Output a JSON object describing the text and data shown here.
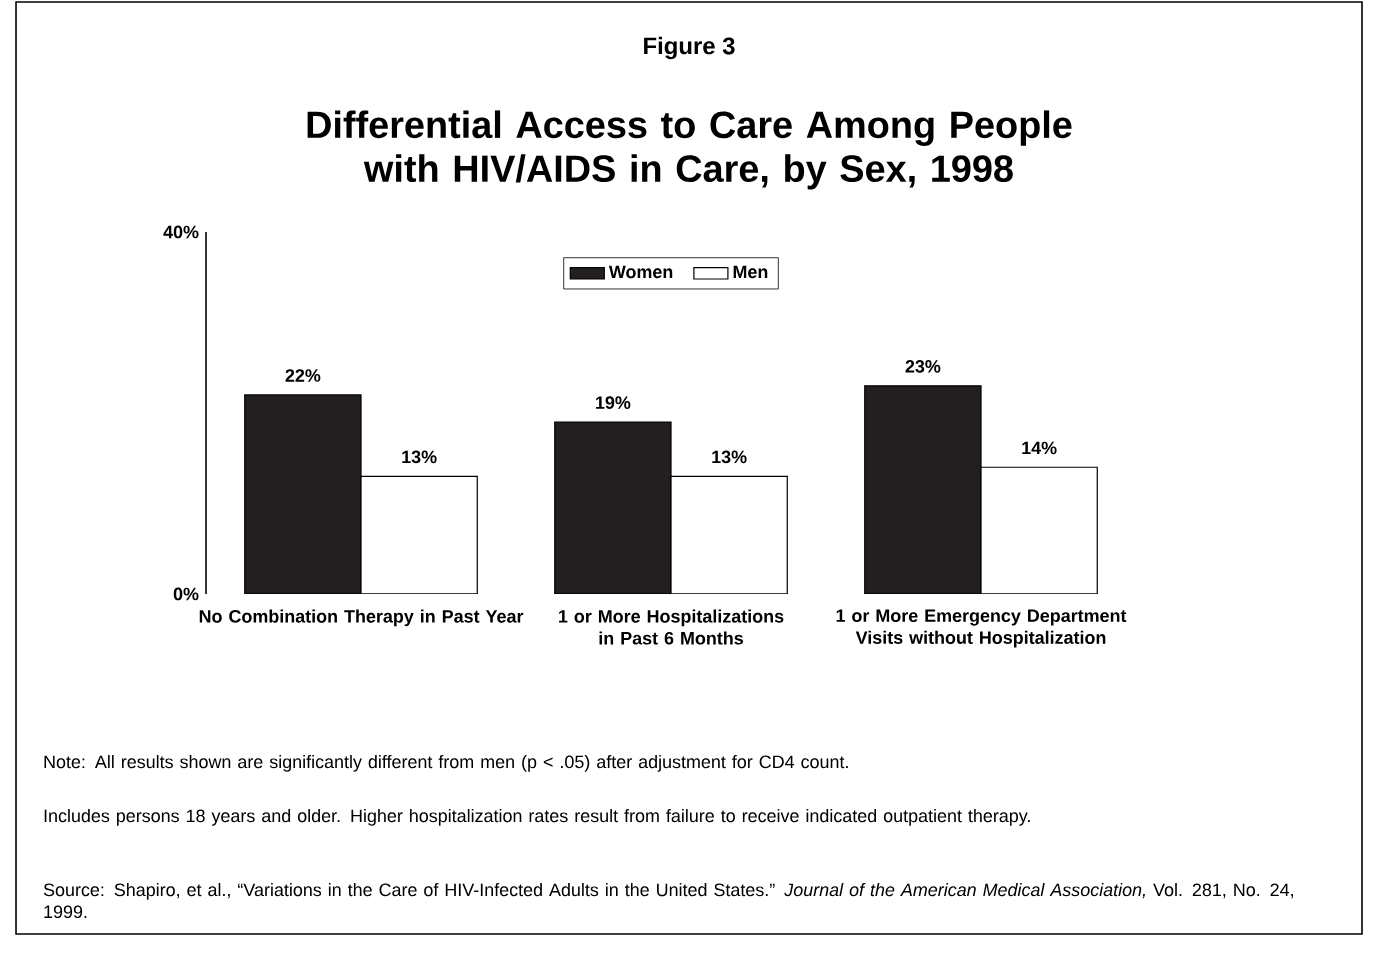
{
  "chart_data": {
    "type": "bar",
    "title": "Figure 3",
    "subtitle": "Differential Access to Care Among People with HIV/AIDS in Care, by Sex, 1998",
    "categories": [
      "No Combination Therapy in Past Year",
      "1 or More Hospitalizations in Past 6 Months",
      "1 or More Emergency Department Visits without Hospitalization"
    ],
    "series": [
      {
        "name": "Women",
        "color": "#231f20",
        "values": [
          22,
          19,
          23
        ],
        "value_labels": [
          "22%",
          "19%",
          "23%"
        ]
      },
      {
        "name": "Men",
        "color": "#ffffff",
        "values": [
          13,
          13,
          14
        ],
        "value_labels": [
          "13%",
          "13%",
          "14%"
        ]
      }
    ],
    "ylim": [
      0,
      40
    ],
    "yticks": [
      {
        "value": 0,
        "label": "0%"
      },
      {
        "value": 40,
        "label": "40%"
      }
    ],
    "legend": "top",
    "grid": false,
    "annotations": [
      "Note: All results shown are significantly different from men (p < .05) after adjustment for CD4 count.",
      "Includes persons 18 years and older.  Higher hospitalization rates result from failure to receive indicated outpatient therapy.",
      "Source: Shapiro, et al., “Variations in the Care of HIV-Infected Adults in the United States.”  *Journal of the American Medical Association,* Vol. 281, No. 24, 1999."
    ]
  }
}
